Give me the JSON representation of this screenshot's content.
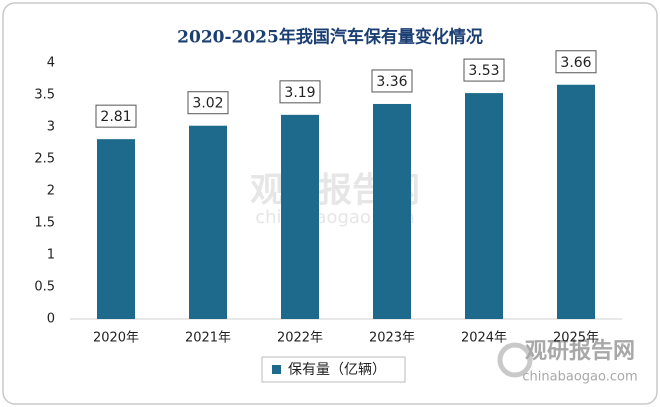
{
  "chart_data": {
    "type": "bar",
    "title": "2020-2025年我国汽车保有量变化情况",
    "categories": [
      "2020年",
      "2021年",
      "2022年",
      "2023年",
      "2024年",
      "2025年"
    ],
    "series": [
      {
        "name": "保有量（亿辆）",
        "color": "#1d6a8c",
        "values": [
          2.81,
          3.02,
          3.19,
          3.36,
          3.53,
          3.66
        ]
      }
    ],
    "ylim": [
      0,
      4
    ],
    "yticks": [
      0,
      0.5,
      1,
      1.5,
      2,
      2.5,
      3,
      3.5,
      4
    ],
    "grid": false,
    "legend": "bottom"
  },
  "watermark": {
    "name": "观研报告网",
    "url": "chinabaogao.com"
  }
}
